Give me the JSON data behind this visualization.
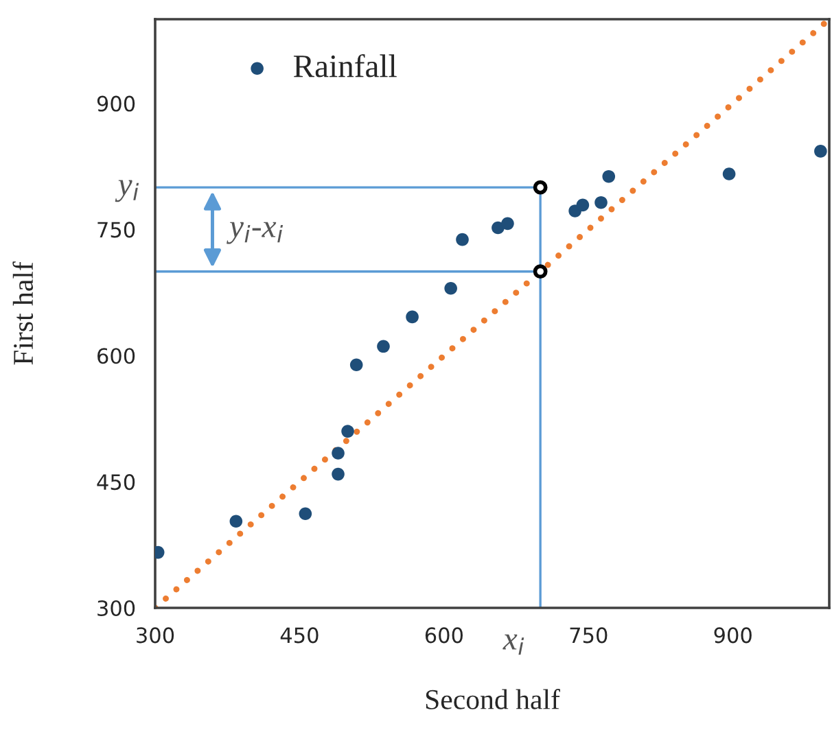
{
  "chart_data": {
    "type": "scatter",
    "xlabel": "Second half",
    "ylabel": "First half",
    "xlim": [
      300,
      1000
    ],
    "ylim": [
      300,
      1000
    ],
    "xticks": [
      300,
      450,
      600,
      750,
      900
    ],
    "yticks": [
      300,
      450,
      600,
      750,
      900
    ],
    "grid": false,
    "legend": "top left",
    "series": [
      {
        "name": "Rainfall",
        "marker": "circle",
        "color": "#1f4e79",
        "x": [
          303,
          384,
          456,
          490,
          490,
          500,
          509,
          537,
          567,
          607,
          619,
          656,
          666,
          736,
          744,
          763,
          771,
          896,
          991
        ],
        "values": [
          366,
          403,
          412,
          459,
          484,
          510,
          589,
          611,
          646,
          680,
          738,
          752,
          757,
          772,
          779,
          782,
          813,
          816,
          843
        ]
      },
      {
        "type": "line",
        "marker": "none",
        "line_style": "dotted",
        "color": "#ed7d31",
        "x": [
          300,
          1000
        ],
        "values": [
          300,
          1000
        ]
      },
      {
        "type": "line",
        "marker": "none",
        "line_style": "solid",
        "color": "#5b9bd5",
        "x": [
          300,
          700,
          700
        ],
        "values": [
          800,
          800,
          300
        ]
      },
      {
        "type": "line",
        "marker": "none",
        "line_style": "solid",
        "color": "#5b9bd5",
        "x": [
          300,
          700
        ],
        "values": [
          700,
          700
        ]
      },
      {
        "marker": "circle",
        "color": "#000000",
        "x": [
          700,
          700
        ],
        "values": [
          700,
          800
        ]
      }
    ],
    "annotations": [
      {
        "text": "x$_{i}$",
        "x": 700,
        "y": 300
      },
      {
        "text": "y$_{i}$",
        "x": 300,
        "y": 800
      },
      "y$_{i}$-x$_{i}$"
    ]
  }
}
